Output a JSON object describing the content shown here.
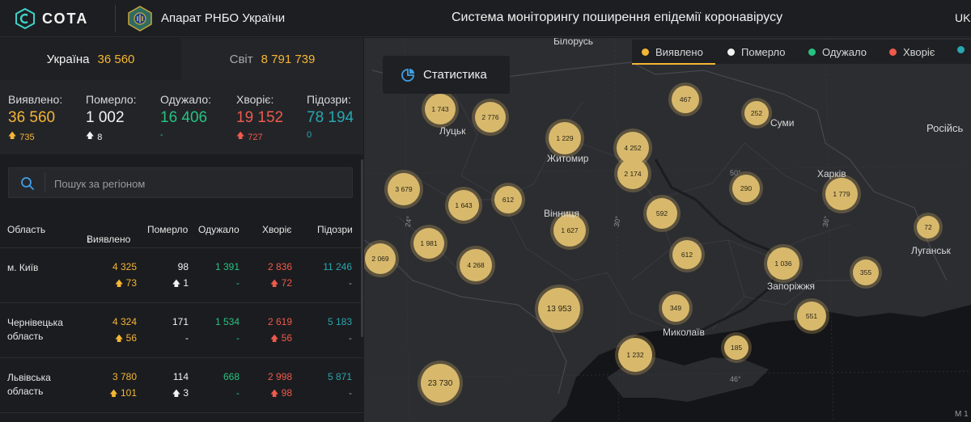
{
  "header": {
    "logo_text": "СОТА",
    "org_name": "Апарат РНБО України",
    "system_title": "Система моніторингу поширення епідемії коронавірусу",
    "language": "UK"
  },
  "scope": {
    "ukraine": {
      "label": "Україна",
      "value": "36 560"
    },
    "world": {
      "label": "Світ",
      "value": "8 791 739"
    }
  },
  "stats": [
    {
      "label": "Виявлено:",
      "value": "36 560",
      "delta": "735",
      "color": "#f5b634",
      "arrow": "#f5b634"
    },
    {
      "label": "Померло:",
      "value": "1 002",
      "delta": "8",
      "color": "#f2f2f2",
      "arrow": "#f2f2f2"
    },
    {
      "label": "Одужало:",
      "value": "16 406",
      "delta": "-",
      "color": "#27c281",
      "arrow": ""
    },
    {
      "label": "Хворіє:",
      "value": "19 152",
      "delta": "727",
      "color": "#ef5a4c",
      "arrow": "#ef5a4c"
    },
    {
      "label": "Підозри:",
      "value": "78 194",
      "delta": "0",
      "color": "#27a7b0",
      "arrow": ""
    }
  ],
  "search": {
    "placeholder": "Пошук за регіоном"
  },
  "table": {
    "headers": {
      "region": "Область",
      "detected": "Виявлено",
      "died": "Померло",
      "recovered": "Одужало",
      "sick": "Хворіє",
      "suspected": "Підозри"
    },
    "rows": [
      {
        "region": "м. Київ",
        "detected": "4 325",
        "detected_delta": "73",
        "died": "98",
        "died_delta": "1",
        "recovered": "1 391",
        "recovered_delta": "-",
        "sick": "2 836",
        "sick_delta": "72",
        "suspected": "11 246",
        "suspected_delta": "-"
      },
      {
        "region": "Чернівецька область",
        "detected": "4 324",
        "detected_delta": "56",
        "died": "171",
        "died_delta": "-",
        "recovered": "1 534",
        "recovered_delta": "-",
        "sick": "2 619",
        "sick_delta": "56",
        "suspected": "5 183",
        "suspected_delta": "-"
      },
      {
        "region": "Львівська область",
        "detected": "3 780",
        "detected_delta": "101",
        "died": "114",
        "died_delta": "3",
        "recovered": "668",
        "recovered_delta": "-",
        "sick": "2 998",
        "sick_delta": "98",
        "suspected": "5 871",
        "suspected_delta": "-"
      }
    ]
  },
  "map": {
    "stat_button": "Статистика",
    "legend": [
      {
        "label": "Виявлено",
        "color": "#f5b634"
      },
      {
        "label": "Померло",
        "color": "#f2f2f2"
      },
      {
        "label": "Одужало",
        "color": "#27c281"
      },
      {
        "label": "Хворіє",
        "color": "#ef5a4c"
      },
      {
        "label": "",
        "color": "#27a7b0"
      }
    ],
    "places": [
      "Білорусь",
      "Луцьк",
      "Житомир",
      "Суми",
      "Російсь",
      "Харків",
      "Вінниця",
      "Луганськ",
      "Запоріжжя",
      "Миколаїв"
    ],
    "grid_labels": [
      "50°",
      "24°",
      "30°",
      "36°",
      "46°"
    ],
    "scale_label": "М 1",
    "clusters": [
      "1 743",
      "2 776",
      "467",
      "252",
      "1 229",
      "4 252",
      "2 174",
      "3 679",
      "1 643",
      "612",
      "290",
      "1 779",
      "592",
      "1 981",
      "1 627",
      "72",
      "2 069",
      "4 268",
      "612",
      "1 036",
      "355",
      "13 953",
      "349",
      "551",
      "185",
      "1 232",
      "23 730"
    ]
  }
}
